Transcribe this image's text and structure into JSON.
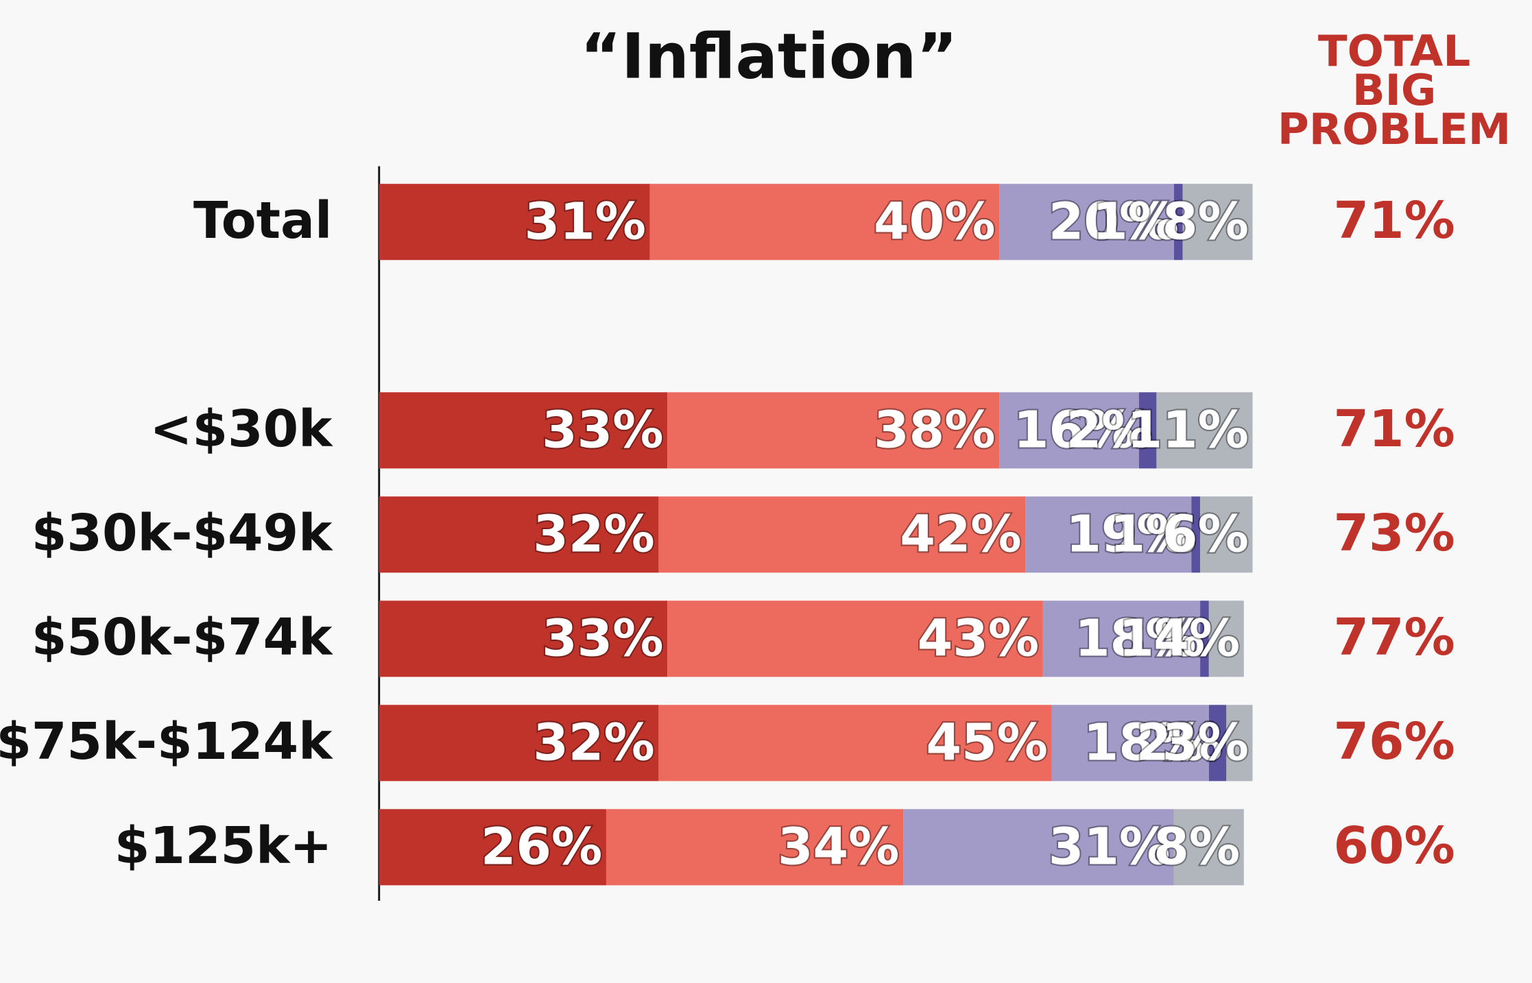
{
  "chart_data": {
    "type": "stacked-bar",
    "orientation": "horizontal",
    "title": "“Inflation”",
    "categories": [
      "Total",
      null,
      "<$30k",
      "$30k-$49k",
      "$50k-$74k",
      "$75k-$124k",
      "$125k+"
    ],
    "xlim": [
      0,
      100
    ],
    "series": [
      {
        "color": "#c0332b",
        "values": [
          31,
          null,
          33,
          32,
          33,
          32,
          26
        ],
        "value_labels": [
          "31%",
          null,
          "33%",
          "32%",
          "33%",
          "32%",
          "26%"
        ]
      },
      {
        "color": "#ec6a5e",
        "values": [
          40,
          null,
          38,
          42,
          43,
          45,
          34
        ],
        "value_labels": [
          "40%",
          null,
          "38%",
          "42%",
          "43%",
          "45%",
          "34%"
        ]
      },
      {
        "color": "#a29bc8",
        "values": [
          20,
          null,
          16,
          19,
          18,
          18,
          31
        ],
        "value_labels": [
          "20%",
          null,
          "16%",
          "19%",
          "18%",
          "18%",
          "31%"
        ]
      },
      {
        "color": "#5a519e",
        "values": [
          1,
          null,
          2,
          1,
          1,
          2,
          null
        ],
        "value_labels": [
          "1%",
          null,
          "2%",
          "1%",
          "1%",
          "2%",
          null
        ]
      },
      {
        "color": "#b0b6bc",
        "values": [
          8,
          null,
          11,
          6,
          4,
          3,
          8
        ],
        "value_labels": [
          "8%",
          null,
          "11%",
          "6%",
          "4%",
          "3%",
          "8%"
        ]
      }
    ],
    "total_column": {
      "title_lines": [
        "TOTAL",
        "BIG",
        "PROBLEM"
      ],
      "color": "#c0332b",
      "values": [
        71,
        null,
        71,
        73,
        77,
        76,
        60
      ],
      "value_labels": [
        "71%",
        null,
        "71%",
        "73%",
        "77%",
        "76%",
        "60%"
      ]
    }
  }
}
